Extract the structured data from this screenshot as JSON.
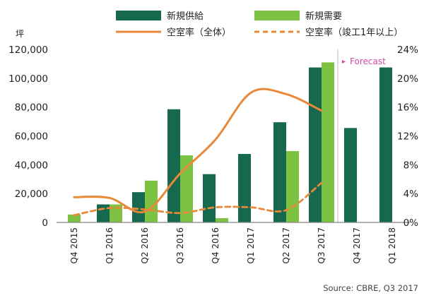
{
  "chart_data": {
    "type": "bar",
    "categories": [
      "Q4 2015",
      "Q1 2016",
      "Q2 2016",
      "Q3 2016",
      "Q4 2016",
      "Q1 2017",
      "Q2 2017",
      "Q3 2017",
      "Q4 2017",
      "Q1 2018"
    ],
    "series": [
      {
        "name": "新規供給",
        "kind": "bar",
        "axis": "left",
        "color": "#15694f",
        "values": [
          0,
          12500,
          21000,
          78500,
          33500,
          47500,
          69500,
          107500,
          65500,
          107500
        ]
      },
      {
        "name": "新規需要",
        "kind": "bar",
        "axis": "left",
        "color": "#7dc242",
        "values": [
          5500,
          12500,
          29000,
          46500,
          3000,
          null,
          49500,
          111000,
          null,
          null
        ]
      },
      {
        "name": "空室率（全体）",
        "kind": "line",
        "axis": "right",
        "style": "solid",
        "color": "#e8893a",
        "values": [
          3.5,
          3.4,
          1.5,
          6.8,
          11.5,
          18.0,
          17.8,
          15.5,
          null,
          null
        ]
      },
      {
        "name": "空室率（竣工1年以上）",
        "kind": "line",
        "axis": "right",
        "style": "dashed",
        "color": "#e8893a",
        "values": [
          1.0,
          2.0,
          1.8,
          1.3,
          2.1,
          2.1,
          1.7,
          5.5,
          null,
          null
        ]
      }
    ],
    "y_left": {
      "label": "坪",
      "ylim": [
        0,
        120000
      ],
      "ticks": [
        "0",
        "20,000",
        "40,000",
        "60,000",
        "80,000",
        "100,000",
        "120,000"
      ]
    },
    "y_right": {
      "ylim": [
        0,
        24
      ],
      "ticks": [
        "0%",
        "4%",
        "8%",
        "12%",
        "16%",
        "20%",
        "24%"
      ]
    },
    "forecast_label": "Forecast",
    "forecast_divider_after": "Q3 2017",
    "grid": false,
    "legend_placement": "top",
    "source": "Source:  CBRE,  Q3  2017",
    "colors": {
      "forecast": "#d24aa8",
      "axis": "#888888",
      "divider": "#bbbbbb"
    }
  }
}
